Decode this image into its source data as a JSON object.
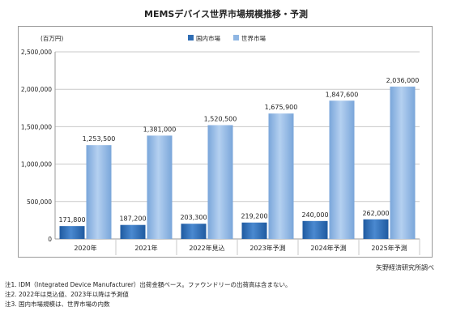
{
  "title": "MEMSデバイス世界市場規模推移・予測",
  "source": "矢野経済研究所調べ",
  "notes": [
    "注1.  IDM（Integrated Device Manufacturer）出荷金額ベース。ファウンドリーの出荷高は含まない。",
    "注2.  2022年は見込値、2023年以降は予測値",
    "注3.  国内市場規模は、世界市場の内数"
  ],
  "chart_data": {
    "type": "bar",
    "ylabel": "(百万円)",
    "categories": [
      "2020年",
      "2021年",
      "2022年見込",
      "2023年予測",
      "2024年予測",
      "2025年予測"
    ],
    "ylim": [
      0,
      2500000
    ],
    "yticks": [
      0,
      500000,
      1000000,
      1500000,
      2000000,
      2500000
    ],
    "ytick_labels": [
      "0",
      "500,000",
      "1,000,000",
      "1,500,000",
      "2,000,000",
      "2,500,000"
    ],
    "grid": true,
    "legend_position": "top-center",
    "series": [
      {
        "name": "国内市場",
        "color": "#2f6db4",
        "values": [
          171800,
          187200,
          203300,
          219200,
          240000,
          262000
        ],
        "labels": [
          "171,800",
          "187,200",
          "203,300",
          "219,200",
          "240,000",
          "262,000"
        ]
      },
      {
        "name": "世界市場",
        "color": "#8fb6e3",
        "values": [
          1253500,
          1381000,
          1520500,
          1675900,
          1847600,
          2036000
        ],
        "labels": [
          "1,253,500",
          "1,381,000",
          "1,520,500",
          "1,675,900",
          "1,847,600",
          "2,036,000"
        ]
      }
    ]
  }
}
